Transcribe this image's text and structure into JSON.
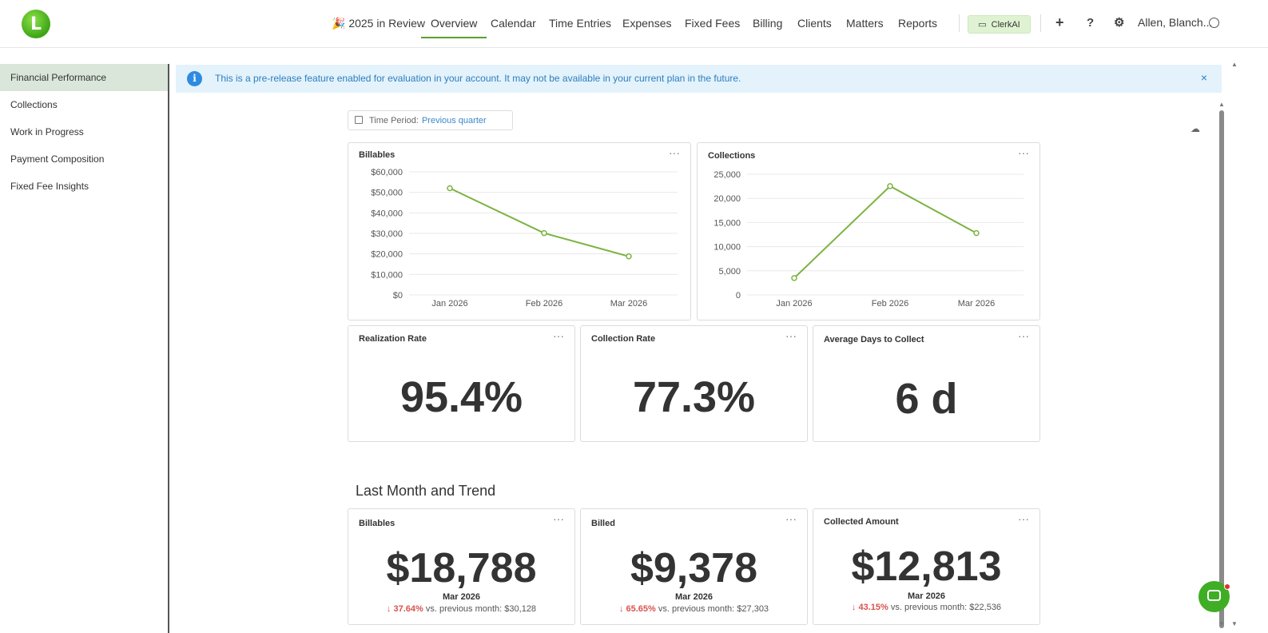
{
  "nav": {
    "review": "🎉 2025 in Review",
    "items": [
      "Overview",
      "Calendar",
      "Time Entries",
      "Expenses",
      "Fixed Fees",
      "Billing",
      "Clients",
      "Matters",
      "Reports"
    ],
    "clerk": "ClerkAI",
    "user": "Allen, Blanch..."
  },
  "sidebar": {
    "items": [
      "Financial Performance",
      "Collections",
      "Work in Progress",
      "Payment Composition",
      "Fixed Fee Insights"
    ]
  },
  "banner": {
    "text": "This is a pre-release feature enabled for evaluation in your account. It may not be available in your current plan in the future."
  },
  "period": {
    "label": "Time Period:",
    "value": "Previous quarter"
  },
  "charts": {
    "billables": {
      "title": "Billables",
      "chart_data": {
        "type": "line",
        "categories": [
          "Jan 2026",
          "Feb 2026",
          "Mar 2026"
        ],
        "values": [
          52000,
          30128,
          18788
        ],
        "yticks": [
          "$60,000",
          "$50,000",
          "$40,000",
          "$30,000",
          "$20,000",
          "$10,000",
          "$0"
        ],
        "ylim": [
          0,
          60000
        ],
        "color": "#7cb342"
      }
    },
    "collections": {
      "title": "Collections",
      "chart_data": {
        "type": "line",
        "categories": [
          "Jan 2026",
          "Feb 2026",
          "Mar 2026"
        ],
        "values": [
          3500,
          22536,
          12813
        ],
        "yticks": [
          "25,000",
          "20,000",
          "15,000",
          "10,000",
          "5,000",
          "0"
        ],
        "ylim": [
          0,
          25000
        ],
        "color": "#7cb342"
      }
    }
  },
  "kpis": {
    "realization": {
      "title": "Realization Rate",
      "value": "95.4%"
    },
    "collection": {
      "title": "Collection Rate",
      "value": "77.3%"
    },
    "days": {
      "title": "Average Days to Collect",
      "value": "6 d"
    }
  },
  "trend_section": {
    "title": "Last Month and Trend",
    "cards": [
      {
        "title": "Billables",
        "value": "$18,788",
        "date": "Mar 2026",
        "pct": "37.64%",
        "prev": "vs. previous month: $30,128"
      },
      {
        "title": "Billed",
        "value": "$9,378",
        "date": "Mar 2026",
        "pct": "65.65%",
        "prev": "vs. previous month: $27,303"
      },
      {
        "title": "Collected Amount",
        "value": "$12,813",
        "date": "Mar 2026",
        "pct": "43.15%",
        "prev": "vs. previous month: $22,536"
      }
    ]
  },
  "icons": {
    "menu_dots": "···",
    "close": "×",
    "arrow_down": "↓"
  }
}
